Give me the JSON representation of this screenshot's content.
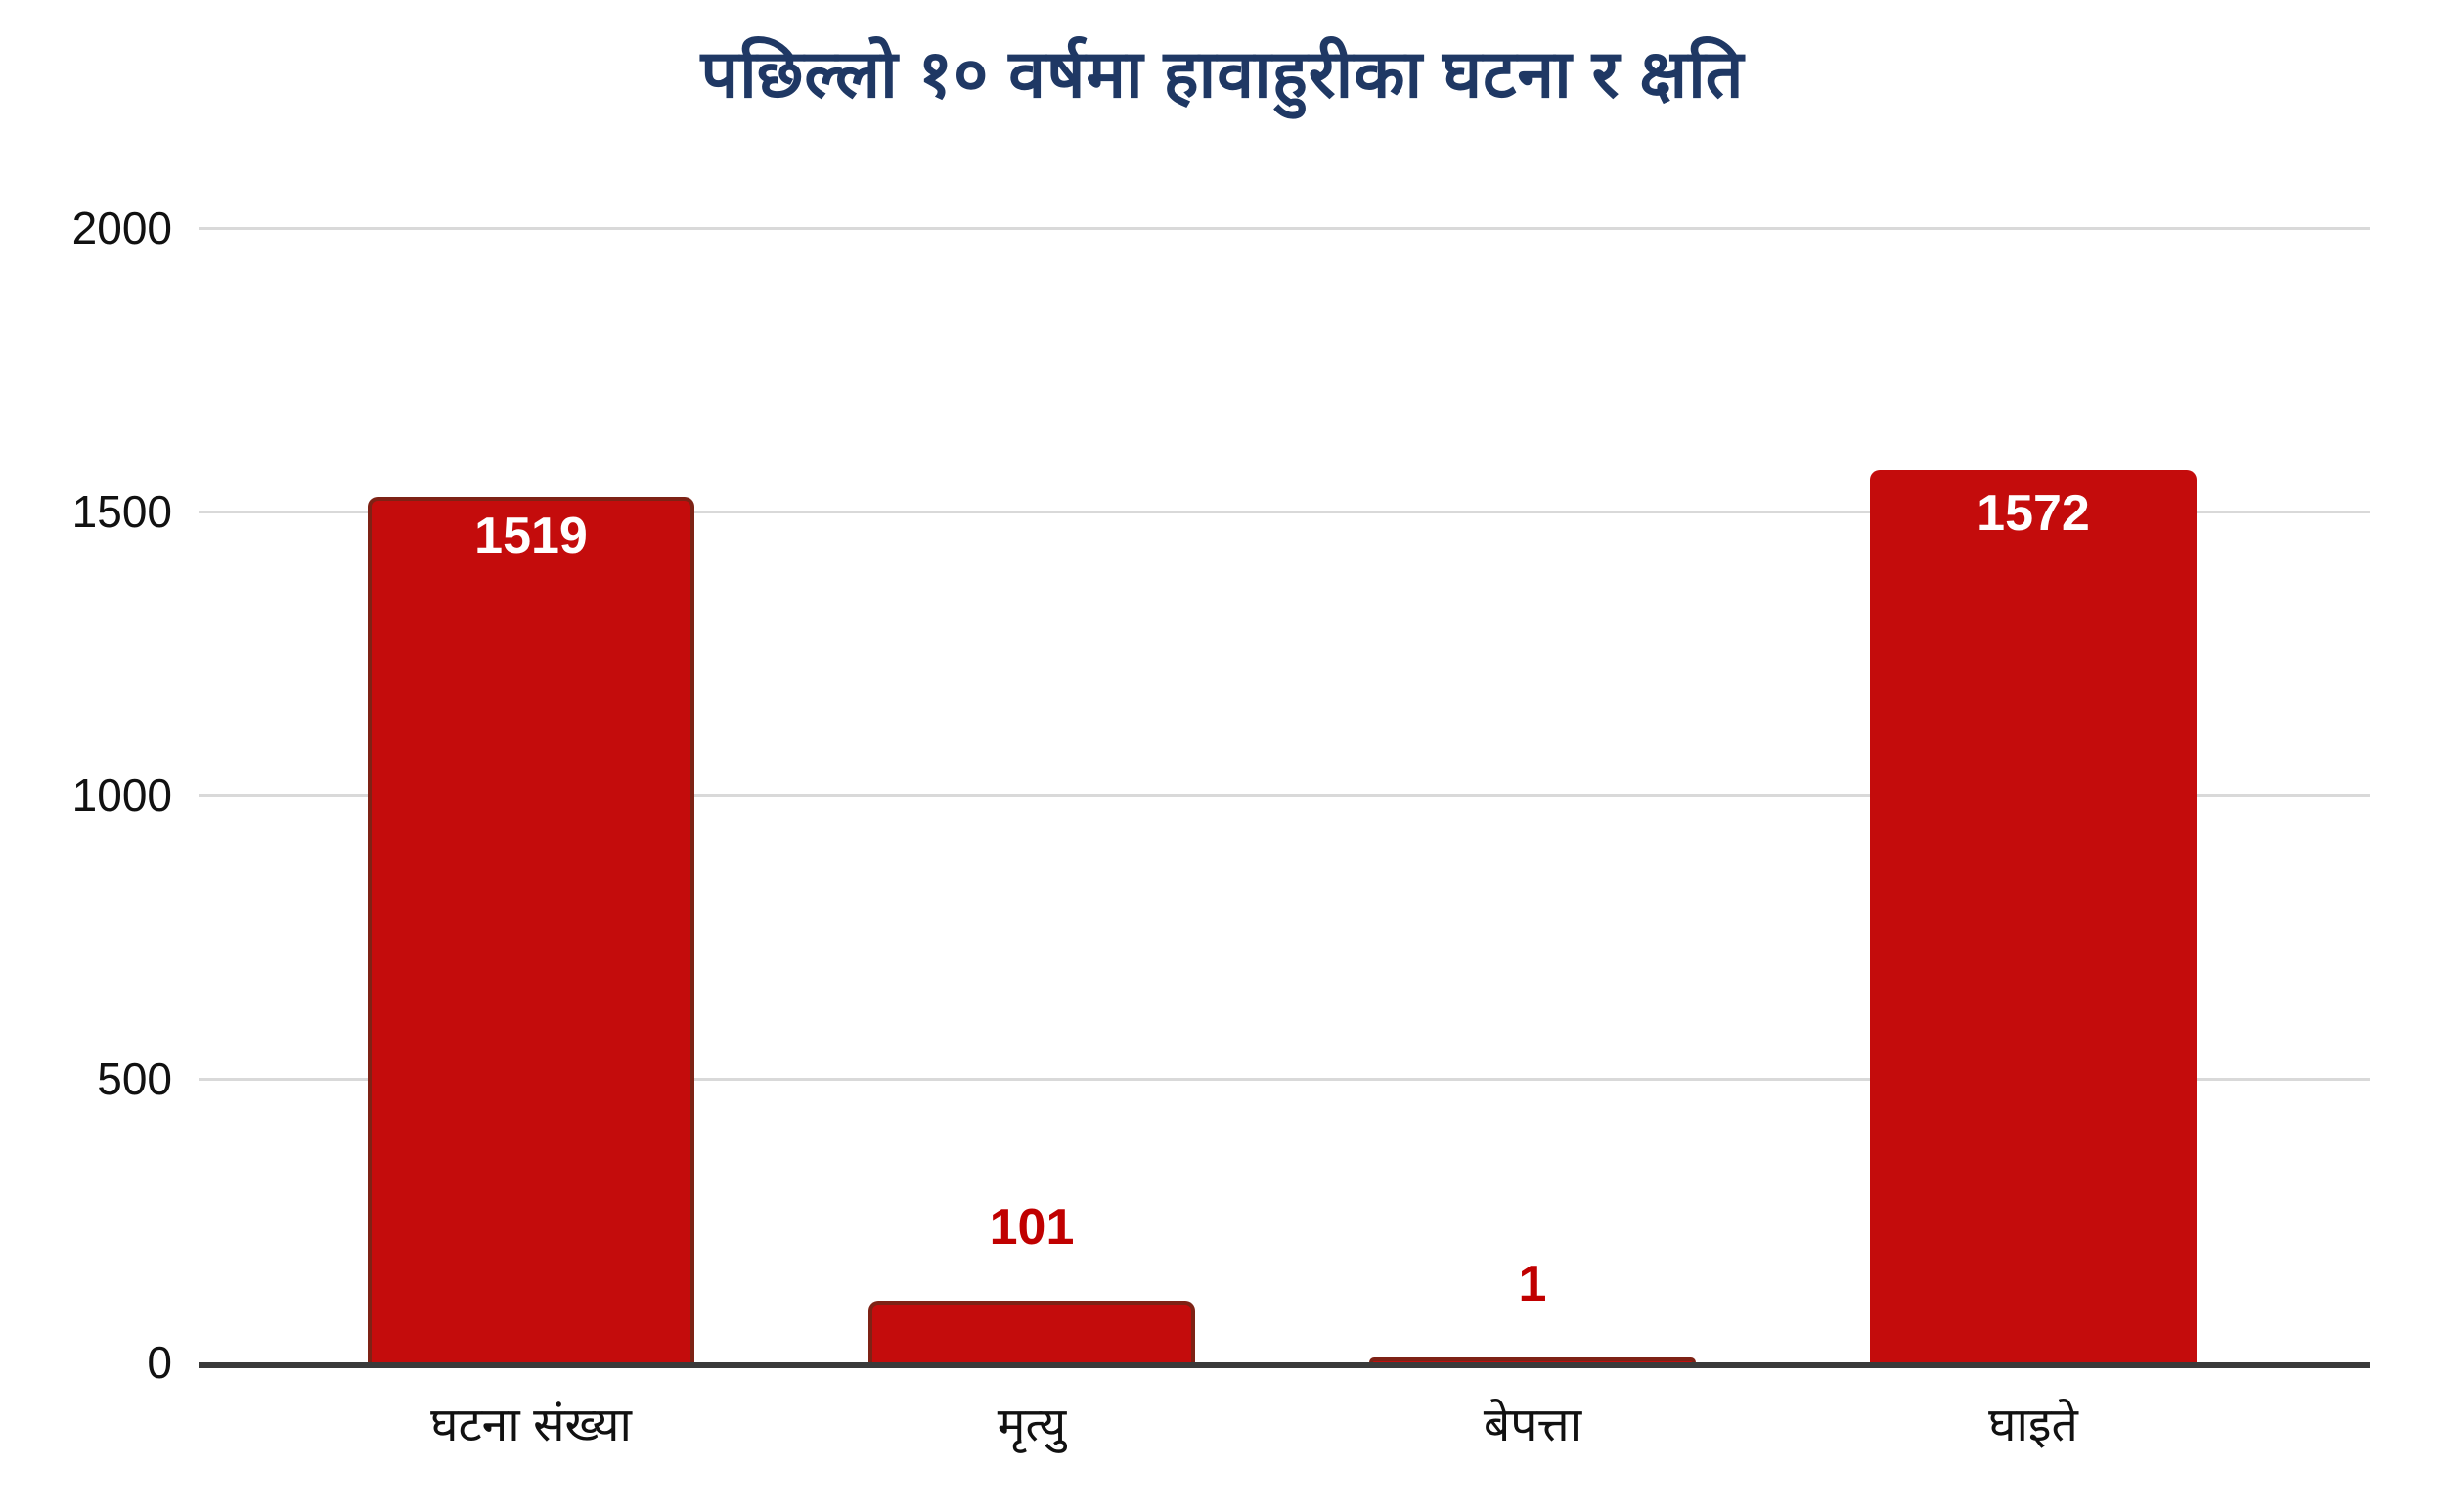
{
  "chart_data": {
    "type": "bar",
    "title": "पछिल्लो १० वर्षमा हावाहुरीका घटना र क्षति",
    "categories": [
      "घटना संख्या",
      "मृत्यु",
      "बेपत्ता",
      "घाइते"
    ],
    "values": [
      1519,
      101,
      1,
      1572
    ],
    "data_labels": [
      "1519",
      "101",
      "1",
      "1572"
    ],
    "label_position": [
      "inside",
      "outside",
      "outside",
      "inside"
    ],
    "bar_bordered": [
      true,
      true,
      true,
      false
    ],
    "xlabel": "",
    "ylabel": "",
    "ylim": [
      0,
      2000
    ],
    "yticks": [
      0,
      500,
      1000,
      1500,
      2000
    ],
    "grid": "horizontal",
    "legend": "none",
    "colors": {
      "title": "#1F3864",
      "bar_fill": "#C40C0C",
      "bar_border": "#7E2215",
      "label_inside": "#FFFFFF",
      "label_outside": "#C00000",
      "gridline": "#D9D9D9",
      "axis_line": "#3A3A3A",
      "tick_label": "#111111",
      "category_label": "#111111"
    }
  }
}
